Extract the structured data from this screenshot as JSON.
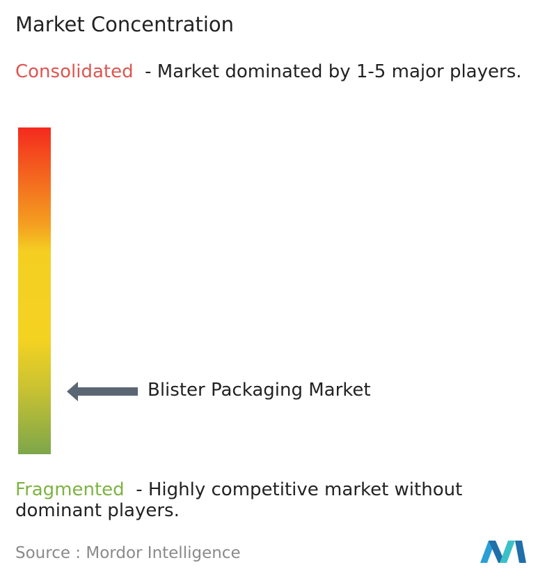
{
  "title": "Market Concentration",
  "consolidated": {
    "label": "Consolidated",
    "description": "- Market dominated by 1-5 major players."
  },
  "marker": {
    "label": "Blister Packaging Market"
  },
  "fragmented": {
    "label": "Fragmented",
    "description": "- Highly competitive market without dominant players."
  },
  "source": {
    "label": "Source :",
    "name": "Mordor Intelligence"
  }
}
